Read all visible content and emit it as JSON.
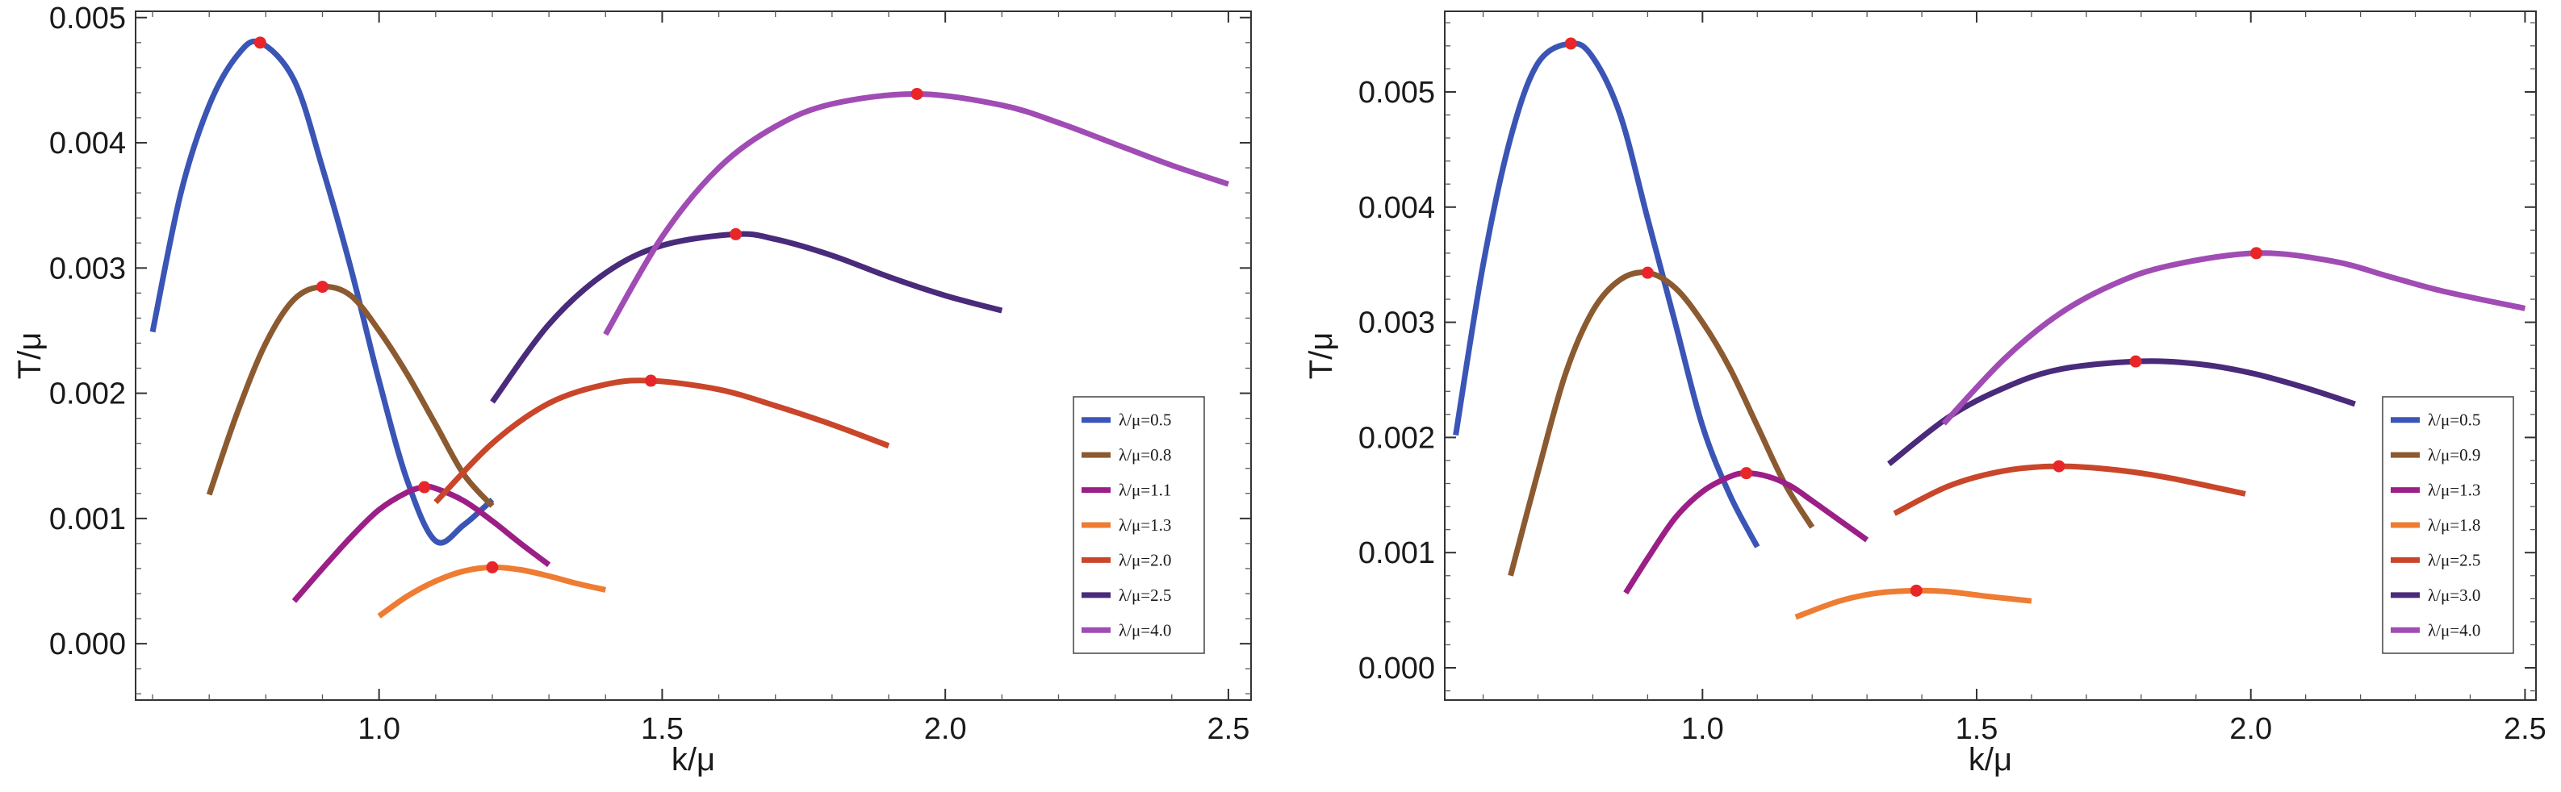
{
  "chart_data": [
    {
      "type": "line",
      "xlabel": "k/μ",
      "ylabel": "T/μ",
      "xlim": [
        0.57,
        2.54
      ],
      "ylim": [
        -0.00045,
        0.00505
      ],
      "xticks": [
        1.0,
        1.5,
        2.0,
        2.5
      ],
      "xtick_labels": [
        "1.0",
        "1.5",
        "2.0",
        "2.5"
      ],
      "yticks": [
        0.0,
        0.001,
        0.002,
        0.003,
        0.004,
        0.005
      ],
      "ytick_labels": [
        "0.000",
        "0.001",
        "0.002",
        "0.003",
        "0.004",
        "0.005"
      ],
      "legend_position": "bottom-right",
      "series": [
        {
          "name": "λ/μ=0.5",
          "color": "#3a55b5",
          "x": [
            0.6,
            0.65,
            0.7,
            0.75,
            0.79,
            0.85,
            0.9,
            0.95,
            1.0,
            1.05,
            1.1,
            1.15,
            1.2
          ],
          "y": [
            0.00249,
            0.0036,
            0.0043,
            0.0047,
            0.0048,
            0.0045,
            0.0038,
            0.003,
            0.0021,
            0.0013,
            0.00082,
            0.00095,
            0.00115
          ],
          "peak": {
            "x": 0.79,
            "y": 0.0048
          }
        },
        {
          "name": "λ/μ=0.8",
          "color": "#8c5a30",
          "x": [
            0.7,
            0.75,
            0.8,
            0.85,
            0.9,
            0.95,
            1.0,
            1.05,
            1.1,
            1.15,
            1.2
          ],
          "y": [
            0.00119,
            0.00185,
            0.0024,
            0.00275,
            0.00285,
            0.00278,
            0.0025,
            0.00215,
            0.00175,
            0.00135,
            0.0011
          ],
          "peak": {
            "x": 0.9,
            "y": 0.00285
          }
        },
        {
          "name": "λ/μ=1.1",
          "color": "#9b1f86",
          "x": [
            0.85,
            0.9,
            0.95,
            1.0,
            1.05,
            1.08,
            1.1,
            1.15,
            1.2,
            1.25,
            1.3
          ],
          "y": [
            0.00034,
            0.0006,
            0.00085,
            0.00107,
            0.00121,
            0.00125,
            0.00124,
            0.00114,
            0.00098,
            0.0008,
            0.00063
          ],
          "peak": {
            "x": 1.08,
            "y": 0.00125
          }
        },
        {
          "name": "λ/μ=1.3",
          "color": "#ee7c32",
          "x": [
            1.0,
            1.05,
            1.1,
            1.15,
            1.2,
            1.25,
            1.3,
            1.35,
            1.4
          ],
          "y": [
            0.00022,
            0.00038,
            0.0005,
            0.00058,
            0.00061,
            0.00059,
            0.00054,
            0.00048,
            0.00043
          ],
          "peak": {
            "x": 1.2,
            "y": 0.00061
          }
        },
        {
          "name": "λ/μ=2.0",
          "color": "#c9462a",
          "x": [
            1.1,
            1.2,
            1.3,
            1.4,
            1.48,
            1.6,
            1.7,
            1.8,
            1.9
          ],
          "y": [
            0.00113,
            0.0016,
            0.00192,
            0.00207,
            0.0021,
            0.00203,
            0.0019,
            0.00175,
            0.00158
          ],
          "peak": {
            "x": 1.48,
            "y": 0.0021
          }
        },
        {
          "name": "λ/μ=2.5",
          "color": "#4a2a7a",
          "x": [
            1.2,
            1.3,
            1.4,
            1.5,
            1.63,
            1.7,
            1.8,
            1.9,
            2.0,
            2.1
          ],
          "y": [
            0.00193,
            0.00255,
            0.00296,
            0.00318,
            0.00327,
            0.00323,
            0.0031,
            0.00293,
            0.00278,
            0.00266
          ],
          "peak": {
            "x": 1.63,
            "y": 0.00327
          }
        },
        {
          "name": "λ/μ=4.0",
          "color": "#a04cb4",
          "x": [
            1.4,
            1.5,
            1.6,
            1.7,
            1.8,
            1.95,
            2.1,
            2.2,
            2.3,
            2.4,
            2.5
          ],
          "y": [
            0.00247,
            0.00325,
            0.0038,
            0.00413,
            0.00431,
            0.00439,
            0.0043,
            0.00416,
            0.00399,
            0.00382,
            0.00367
          ],
          "peak": {
            "x": 1.95,
            "y": 0.00439
          }
        }
      ]
    },
    {
      "type": "line",
      "xlabel": "k/μ",
      "ylabel": "T/μ",
      "xlim": [
        0.53,
        2.52
      ],
      "ylim": [
        -0.00028,
        0.0057
      ],
      "xticks": [
        1.0,
        1.5,
        2.0,
        2.5
      ],
      "xtick_labels": [
        "1.0",
        "1.5",
        "2.0",
        "2.5"
      ],
      "yticks": [
        0.0,
        0.001,
        0.002,
        0.003,
        0.004,
        0.005
      ],
      "ytick_labels": [
        "0.000",
        "0.001",
        "0.002",
        "0.003",
        "0.004",
        "0.005"
      ],
      "legend_position": "bottom-right",
      "series": [
        {
          "name": "λ/μ=0.5",
          "color": "#3a55b5",
          "x": [
            0.55,
            0.6,
            0.65,
            0.7,
            0.76,
            0.8,
            0.85,
            0.9,
            0.95,
            1.0,
            1.05,
            1.1
          ],
          "y": [
            0.00202,
            0.0035,
            0.0046,
            0.00525,
            0.00542,
            0.0053,
            0.0048,
            0.0039,
            0.003,
            0.0021,
            0.0015,
            0.00105
          ],
          "peak": {
            "x": 0.76,
            "y": 0.00542
          }
        },
        {
          "name": "λ/μ=0.9",
          "color": "#8c5a30",
          "x": [
            0.65,
            0.7,
            0.75,
            0.8,
            0.85,
            0.9,
            0.95,
            1.0,
            1.05,
            1.1,
            1.15,
            1.2
          ],
          "y": [
            0.0008,
            0.0017,
            0.00255,
            0.0031,
            0.00337,
            0.00343,
            0.0033,
            0.003,
            0.0026,
            0.0021,
            0.0016,
            0.00122
          ],
          "peak": {
            "x": 0.9,
            "y": 0.00343
          }
        },
        {
          "name": "λ/μ=1.3",
          "color": "#9b1f86",
          "x": [
            0.86,
            0.9,
            0.95,
            1.0,
            1.05,
            1.08,
            1.12,
            1.16,
            1.2,
            1.25,
            1.3
          ],
          "y": [
            0.00065,
            0.00095,
            0.0013,
            0.00153,
            0.00166,
            0.00169,
            0.00166,
            0.00158,
            0.00145,
            0.00128,
            0.00111
          ],
          "peak": {
            "x": 1.08,
            "y": 0.00169
          }
        },
        {
          "name": "λ/μ=1.8",
          "color": "#ee7c32",
          "x": [
            1.17,
            1.25,
            1.32,
            1.39,
            1.45,
            1.52,
            1.6
          ],
          "y": [
            0.00044,
            0.00058,
            0.00065,
            0.00067,
            0.00066,
            0.00062,
            0.00058
          ],
          "peak": {
            "x": 1.39,
            "y": 0.00067
          }
        },
        {
          "name": "λ/μ=2.5",
          "color": "#c9462a",
          "x": [
            1.35,
            1.45,
            1.55,
            1.65,
            1.75,
            1.85,
            1.99
          ],
          "y": [
            0.00134,
            0.00158,
            0.00171,
            0.00175,
            0.00172,
            0.00165,
            0.00151
          ],
          "peak": {
            "x": 1.65,
            "y": 0.00175
          }
        },
        {
          "name": "λ/μ=3.0",
          "color": "#4a2a7a",
          "x": [
            1.34,
            1.45,
            1.55,
            1.65,
            1.79,
            1.9,
            2.0,
            2.1,
            2.19
          ],
          "y": [
            0.00177,
            0.00218,
            0.00243,
            0.00259,
            0.00266,
            0.00264,
            0.00256,
            0.00243,
            0.00229
          ],
          "peak": {
            "x": 1.79,
            "y": 0.00266
          }
        },
        {
          "name": "λ/μ=4.0",
          "color": "#a04cb4",
          "x": [
            1.44,
            1.55,
            1.65,
            1.75,
            1.85,
            2.01,
            2.15,
            2.25,
            2.35,
            2.5
          ],
          "y": [
            0.00212,
            0.00268,
            0.00307,
            0.00333,
            0.00349,
            0.0036,
            0.00353,
            0.0034,
            0.00327,
            0.00312
          ],
          "peak": {
            "x": 2.01,
            "y": 0.0036
          }
        }
      ]
    }
  ]
}
